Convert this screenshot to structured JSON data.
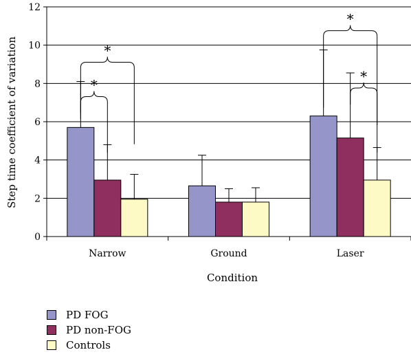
{
  "chart_data": {
    "type": "bar",
    "title": "",
    "xlabel": "Condition",
    "ylabel": "Step time coefficient of variation",
    "ylim": [
      0,
      12
    ],
    "yticks": [
      0,
      2,
      4,
      6,
      8,
      10,
      12
    ],
    "grid": true,
    "legend_position": "bottom-left",
    "categories": [
      "Narrow",
      "Ground",
      "Laser"
    ],
    "series": [
      {
        "name": "PD FOG",
        "color": "#9595c9",
        "values": [
          5.7,
          2.65,
          6.3
        ],
        "error": [
          2.4,
          1.6,
          3.45
        ]
      },
      {
        "name": "PD non-FOG",
        "color": "#8e2f5f",
        "values": [
          2.95,
          1.8,
          5.15
        ],
        "error": [
          1.85,
          0.7,
          3.4
        ]
      },
      {
        "name": "Controls",
        "color": "#fdfac6",
        "values": [
          1.95,
          1.8,
          2.95
        ],
        "error": [
          1.3,
          0.75,
          1.7
        ]
      }
    ],
    "significance": [
      {
        "category": "Narrow",
        "between": [
          "PD FOG",
          "PD non-FOG"
        ],
        "label": "*"
      },
      {
        "category": "Narrow",
        "between": [
          "PD FOG",
          "Controls"
        ],
        "label": "*"
      },
      {
        "category": "Laser",
        "between": [
          "PD FOG",
          "Controls"
        ],
        "label": "*"
      },
      {
        "category": "Laser",
        "between": [
          "PD non-FOG",
          "Controls"
        ],
        "label": "*"
      }
    ]
  }
}
